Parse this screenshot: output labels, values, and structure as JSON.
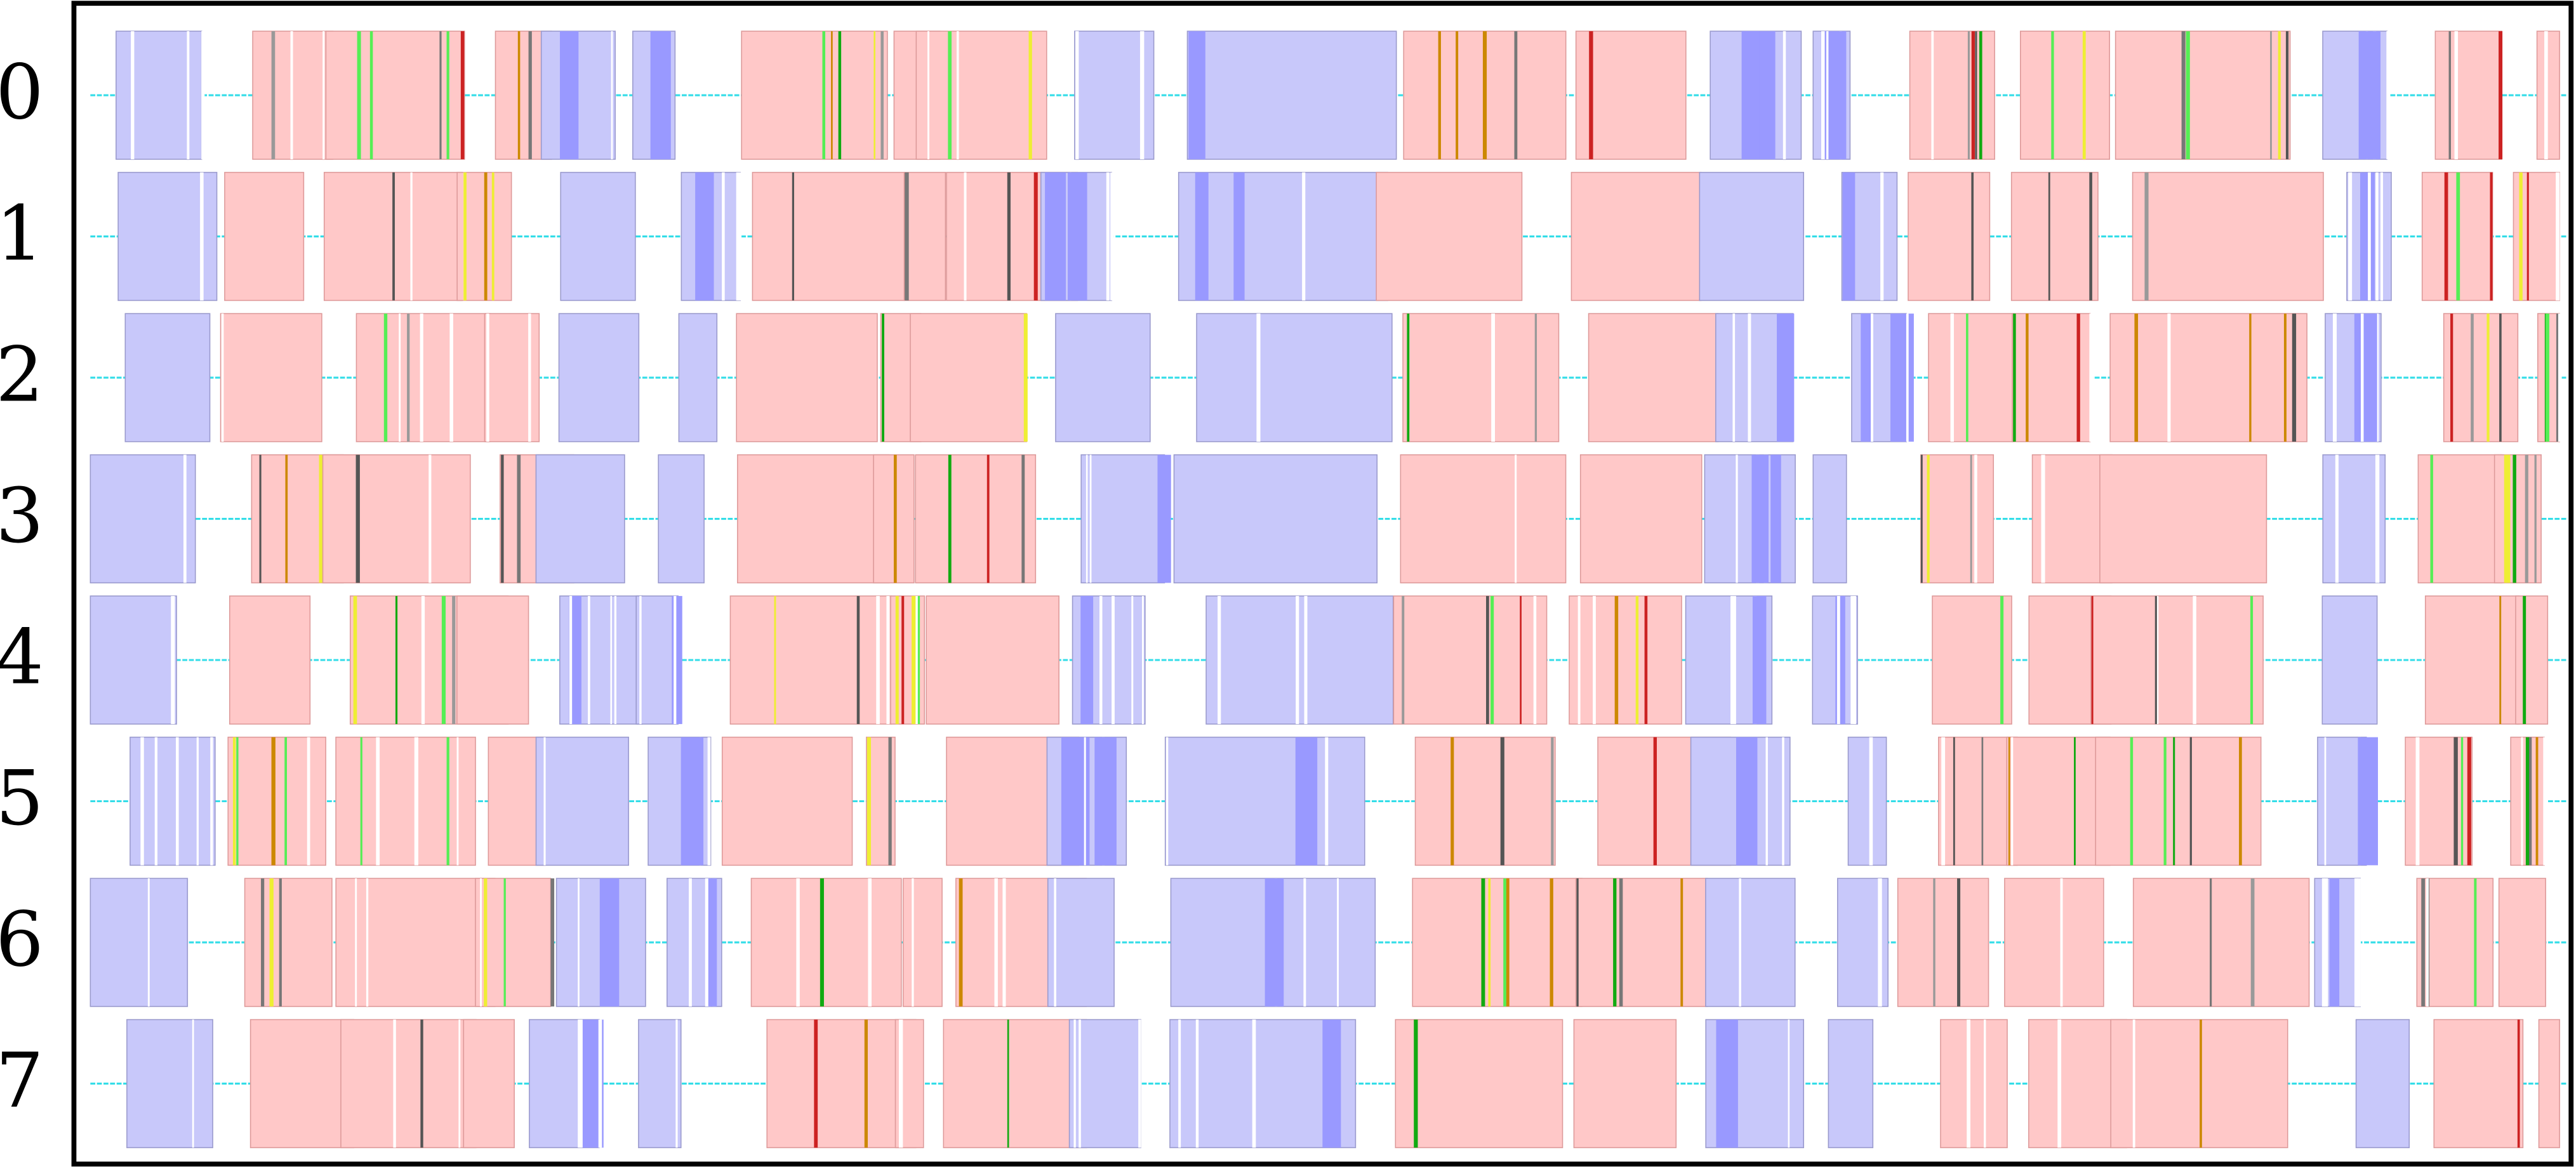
{
  "rows": [
    "0",
    "1",
    "2",
    "3",
    "4",
    "5",
    "6",
    "7"
  ]
}
